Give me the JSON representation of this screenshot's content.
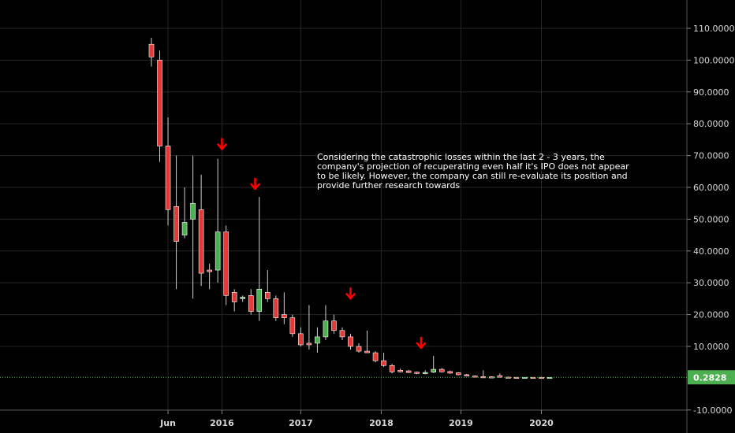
{
  "chart_data": {
    "type": "candlestick",
    "y_ticks": [
      "-10.0000",
      "10.0000",
      "20.0000",
      "30.0000",
      "40.0000",
      "50.0000",
      "60.0000",
      "70.0000",
      "80.0000",
      "90.0000",
      "100.0000",
      "110.0000"
    ],
    "y_tick_values": [
      -10,
      10,
      20,
      30,
      40,
      50,
      60,
      70,
      80,
      90,
      100,
      110
    ],
    "ylim": [
      -10,
      116
    ],
    "x_labels": [
      "Jun",
      "2016",
      "2017",
      "2018",
      "2019",
      "2020"
    ],
    "x_label_index": [
      2,
      8.5,
      18,
      27.7,
      37.3,
      47
    ],
    "x_index_range": [
      -13,
      49.5
    ],
    "current_price": 0.2828,
    "current_price_label": "0.2828",
    "up_color": "#4caf50",
    "down_color": "#e53935",
    "annotation_lines": [
      "Considering the catastrophic losses within the last 2 - 3 years, the",
      "company's projection of recuperating even half it's IPO does not appear",
      "to be likely. However, the company can still re-evaluate its position and",
      "provide further research towards"
    ],
    "arrow_color": "#ff0000",
    "arrow_marks": [
      {
        "index": 8.5,
        "value": 73
      },
      {
        "index": 12.5,
        "value": 60.5
      },
      {
        "index": 24,
        "value": 26
      },
      {
        "index": 32.5,
        "value": 10.5
      }
    ],
    "candles": [
      {
        "o": 105,
        "h": 107,
        "l": 98,
        "c": 101
      },
      {
        "o": 100,
        "h": 103,
        "l": 68,
        "c": 73
      },
      {
        "o": 73,
        "h": 82,
        "l": 48,
        "c": 53
      },
      {
        "o": 54,
        "h": 70,
        "l": 28,
        "c": 43
      },
      {
        "o": 45,
        "h": 60,
        "l": 44,
        "c": 49
      },
      {
        "o": 50,
        "h": 70,
        "l": 25,
        "c": 55
      },
      {
        "o": 53,
        "h": 64,
        "l": 29,
        "c": 33
      },
      {
        "o": 34,
        "h": 36,
        "l": 28,
        "c": 33.5
      },
      {
        "o": 34,
        "h": 69,
        "l": 30,
        "c": 46
      },
      {
        "o": 46,
        "h": 48,
        "l": 23,
        "c": 26
      },
      {
        "o": 27,
        "h": 28,
        "l": 21,
        "c": 24
      },
      {
        "o": 25,
        "h": 26,
        "l": 24,
        "c": 25.5
      },
      {
        "o": 26,
        "h": 28,
        "l": 20,
        "c": 21
      },
      {
        "o": 21,
        "h": 57,
        "l": 18,
        "c": 28
      },
      {
        "o": 27,
        "h": 34,
        "l": 24,
        "c": 25
      },
      {
        "o": 25,
        "h": 26,
        "l": 18,
        "c": 19
      },
      {
        "o": 20,
        "h": 27,
        "l": 17,
        "c": 19
      },
      {
        "o": 19,
        "h": 20,
        "l": 13,
        "c": 14
      },
      {
        "o": 14,
        "h": 16,
        "l": 10,
        "c": 10.5
      },
      {
        "o": 11,
        "h": 23,
        "l": 9,
        "c": 10.5
      },
      {
        "o": 11,
        "h": 16,
        "l": 8,
        "c": 13
      },
      {
        "o": 13,
        "h": 23,
        "l": 12,
        "c": 18
      },
      {
        "o": 18,
        "h": 20,
        "l": 14,
        "c": 15
      },
      {
        "o": 15,
        "h": 16,
        "l": 12,
        "c": 13
      },
      {
        "o": 13,
        "h": 14,
        "l": 9,
        "c": 10
      },
      {
        "o": 10,
        "h": 11,
        "l": 8,
        "c": 8.5
      },
      {
        "o": 8.5,
        "h": 15,
        "l": 8,
        "c": 8
      },
      {
        "o": 8,
        "h": 8.5,
        "l": 5,
        "c": 5.5
      },
      {
        "o": 5.5,
        "h": 8,
        "l": 3.5,
        "c": 4
      },
      {
        "o": 4,
        "h": 4.5,
        "l": 1.5,
        "c": 2
      },
      {
        "o": 2.5,
        "h": 3,
        "l": 1.8,
        "c": 2
      },
      {
        "o": 2.3,
        "h": 2.6,
        "l": 1.6,
        "c": 1.8
      },
      {
        "o": 1.9,
        "h": 2.1,
        "l": 1.3,
        "c": 1.5
      },
      {
        "o": 1.5,
        "h": 2.5,
        "l": 1.2,
        "c": 1.8
      },
      {
        "o": 1.9,
        "h": 7,
        "l": 1.6,
        "c": 2.8
      },
      {
        "o": 2.8,
        "h": 3.2,
        "l": 1.8,
        "c": 2
      },
      {
        "o": 2.1,
        "h": 2.4,
        "l": 1.4,
        "c": 1.6
      },
      {
        "o": 1.7,
        "h": 1.9,
        "l": 0.9,
        "c": 1.1
      },
      {
        "o": 1.1,
        "h": 1.4,
        "l": 0.6,
        "c": 0.7
      },
      {
        "o": 0.7,
        "h": 0.9,
        "l": 0.3,
        "c": 0.5
      },
      {
        "o": 0.5,
        "h": 2.5,
        "l": 0.3,
        "c": 0.45
      },
      {
        "o": 0.45,
        "h": 0.6,
        "l": 0.1,
        "c": 0.3
      },
      {
        "o": 0.8,
        "h": 1.5,
        "l": 0.2,
        "c": 0.3
      },
      {
        "o": 0.35,
        "h": 0.5,
        "l": 0.2,
        "c": 0.3
      },
      {
        "o": 0.3,
        "h": 0.4,
        "l": 0.2,
        "c": 0.28
      },
      {
        "o": 0.28,
        "h": 0.35,
        "l": 0.22,
        "c": 0.29
      },
      {
        "o": 0.29,
        "h": 0.31,
        "l": 0.27,
        "c": 0.285
      },
      {
        "o": 0.285,
        "h": 0.3,
        "l": 0.27,
        "c": 0.28
      },
      {
        "o": 0.28,
        "h": 0.29,
        "l": 0.27,
        "c": 0.2828
      }
    ]
  }
}
